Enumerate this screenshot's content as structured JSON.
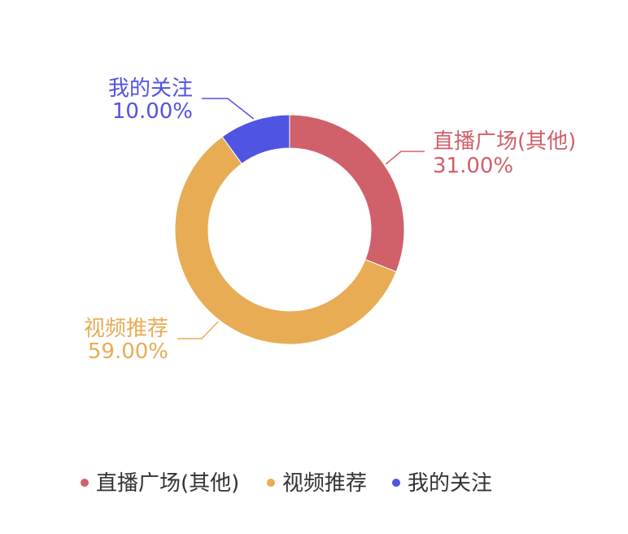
{
  "chart_data": {
    "type": "pie",
    "variant": "donut",
    "title": "",
    "categories": [
      "直播广场(其他)",
      "视频推荐",
      "我的关注"
    ],
    "values": [
      31.0,
      59.0,
      10.0
    ],
    "value_labels": [
      "31.00%",
      "59.00%",
      "10.00%"
    ],
    "colors": [
      "#d0606a",
      "#e8ac55",
      "#5054e2"
    ],
    "legend": {
      "position": "bottom-center",
      "entries": [
        "直播广场(其他)",
        "视频推荐",
        "我的关注"
      ]
    }
  }
}
